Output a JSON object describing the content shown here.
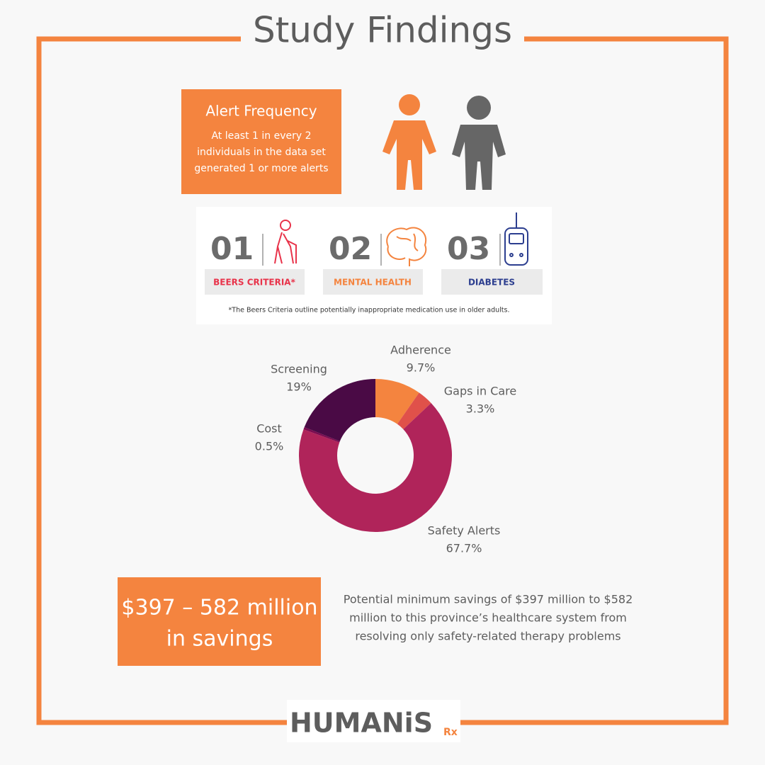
{
  "title": "Study Findings",
  "alert_frequency": {
    "title": "Alert Frequency",
    "lines": [
      "At least 1 in every 2",
      "individuals in the data set",
      "generated 1 or more alerts"
    ]
  },
  "focus_areas": {
    "items": [
      {
        "number": "01",
        "label": "BEERS CRITERIA*"
      },
      {
        "number": "02",
        "label": "MENTAL HEALTH"
      },
      {
        "number": "03",
        "label": "DIABETES"
      }
    ],
    "footnote": "*The Beers Criteria outline potentially inappropriate medication use in older adults."
  },
  "chart_data": {
    "type": "pie",
    "categories": [
      "Adherence",
      "Gaps in Care",
      "Safety Alerts",
      "Cost",
      "Screening"
    ],
    "values": [
      9.7,
      3.3,
      67.7,
      0.5,
      19
    ],
    "value_labels": [
      "9.7%",
      "3.3%",
      "67.7%",
      "0.5%",
      "19%"
    ],
    "colors": [
      "#f4843f",
      "#e0514a",
      "#b0245a",
      "#7a0c50",
      "#4a0a45"
    ]
  },
  "savings": {
    "headline": [
      "$397 – 582 million",
      "in savings"
    ],
    "description": [
      "Potential minimum savings of $397 million to $582",
      "million to this province’s healthcare system from",
      "resolving only safety-related therapy problems"
    ]
  },
  "logo": {
    "name": "HUMANiS",
    "suffix": "Rx"
  }
}
